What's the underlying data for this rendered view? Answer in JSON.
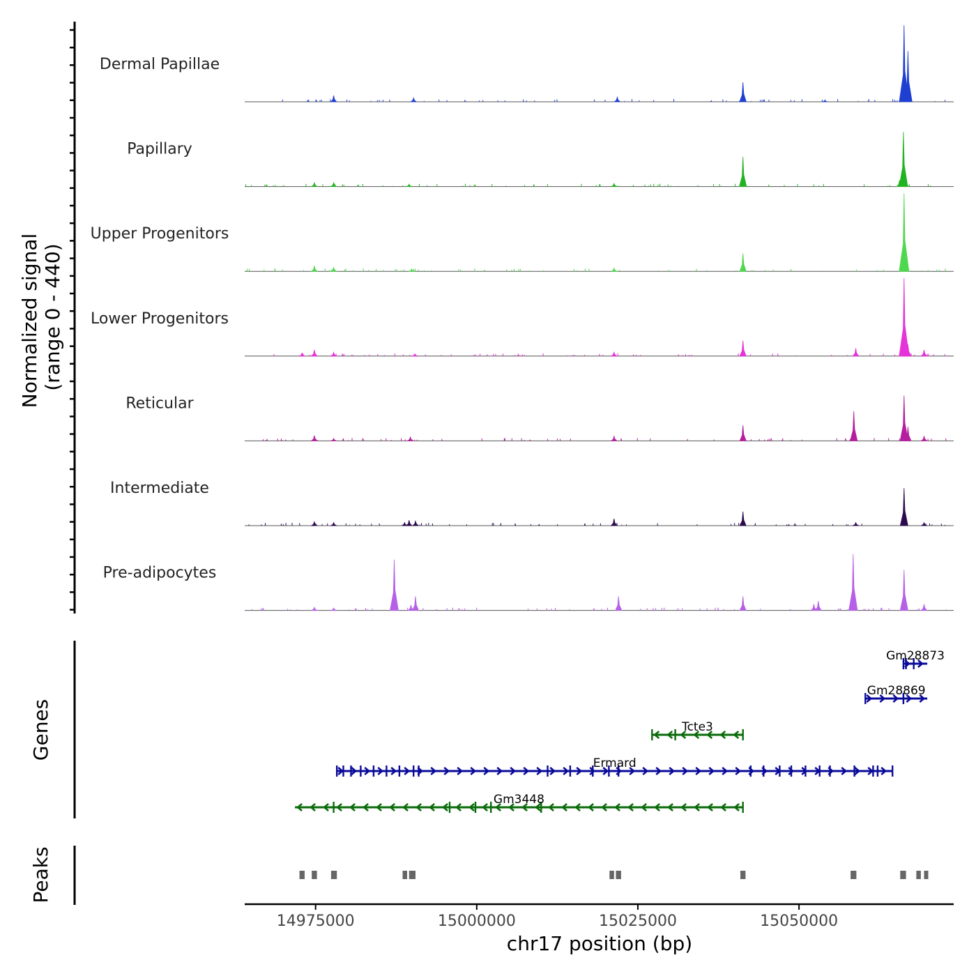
{
  "chart_data": {
    "type": "area",
    "chromosome": "chr17",
    "xlabel": "chr17 position (bp)",
    "xlim": [
      14964000,
      15074000
    ],
    "x_ticks": [
      14975000,
      15000000,
      15025000,
      15050000
    ],
    "x_tick_labels": [
      "14975000",
      "15000000",
      "15025000",
      "15050000"
    ],
    "coverage_panel": {
      "ylabel_line1": "Normalized signal",
      "ylabel_line2": "(range 0 - 440)",
      "ylim": [
        0,
        440
      ],
      "tracks": [
        {
          "name": "Dermal Papillae",
          "color": "#1f3fd1",
          "peaks": [
            [
              14977800,
              0.08
            ],
            [
              14990200,
              0.05
            ],
            [
              15021800,
              0.06
            ],
            [
              15041300,
              0.25
            ],
            [
              15066300,
              0.98
            ],
            [
              15066900,
              0.65
            ],
            [
              15054000,
              0.02
            ]
          ]
        },
        {
          "name": "Papillary",
          "color": "#22b322",
          "peaks": [
            [
              14974800,
              0.05
            ],
            [
              14977800,
              0.05
            ],
            [
              14989500,
              0.03
            ],
            [
              15021300,
              0.04
            ],
            [
              15041300,
              0.38
            ],
            [
              15066200,
              0.7
            ],
            [
              15065600,
              0.08
            ]
          ]
        },
        {
          "name": "Upper Progenitors",
          "color": "#4fd84f",
          "peaks": [
            [
              14974800,
              0.07
            ],
            [
              14977800,
              0.05
            ],
            [
              14989900,
              0.03
            ],
            [
              15021300,
              0.04
            ],
            [
              15041300,
              0.23
            ],
            [
              15066300,
              1.0
            ],
            [
              15066600,
              0.12
            ]
          ]
        },
        {
          "name": "Lower Progenitors",
          "color": "#e532d9",
          "peaks": [
            [
              14972900,
              0.04
            ],
            [
              14974800,
              0.08
            ],
            [
              14977800,
              0.05
            ],
            [
              14990400,
              0.03
            ],
            [
              15021300,
              0.05
            ],
            [
              15041300,
              0.2
            ],
            [
              15058800,
              0.1
            ],
            [
              15066300,
              1.0
            ],
            [
              15066900,
              0.15
            ],
            [
              15069400,
              0.08
            ]
          ]
        },
        {
          "name": "Reticular",
          "color": "#b51e9f",
          "peaks": [
            [
              14974800,
              0.07
            ],
            [
              14977800,
              0.03
            ],
            [
              14989700,
              0.05
            ],
            [
              15021300,
              0.06
            ],
            [
              15041300,
              0.2
            ],
            [
              15058500,
              0.38
            ],
            [
              15066300,
              0.58
            ],
            [
              15066900,
              0.18
            ],
            [
              15069400,
              0.06
            ]
          ]
        },
        {
          "name": "Intermediate",
          "color": "#2e0a4e",
          "peaks": [
            [
              14974800,
              0.05
            ],
            [
              14977800,
              0.04
            ],
            [
              14988800,
              0.04
            ],
            [
              14989500,
              0.07
            ],
            [
              14990500,
              0.06
            ],
            [
              15021300,
              0.09
            ],
            [
              15041300,
              0.18
            ],
            [
              15058800,
              0.04
            ],
            [
              15066300,
              0.48
            ],
            [
              15069400,
              0.04
            ]
          ]
        },
        {
          "name": "Pre-adipocytes",
          "color": "#b660e6",
          "peaks": [
            [
              14974800,
              0.04
            ],
            [
              14977800,
              0.03
            ],
            [
              14987200,
              0.65
            ],
            [
              14990500,
              0.18
            ],
            [
              14989800,
              0.07
            ],
            [
              15022000,
              0.18
            ],
            [
              15041300,
              0.18
            ],
            [
              15052300,
              0.08
            ],
            [
              15053000,
              0.12
            ],
            [
              15058400,
              0.72
            ],
            [
              15066300,
              0.52
            ],
            [
              15069400,
              0.08
            ]
          ]
        }
      ]
    },
    "genes_panel": {
      "ylabel": "Genes",
      "genes": [
        {
          "name": "Gm28873",
          "strand": "+",
          "start": 15066200,
          "end": 15069900,
          "color": "#0a0a99",
          "exons": [
            15066200,
            15066600,
            15067800
          ]
        },
        {
          "name": "Gm28869",
          "strand": "+",
          "start": 15060300,
          "end": 15069900,
          "color": "#0a0a99",
          "exons": [
            15060300,
            15066200
          ]
        },
        {
          "name": "Tcte3",
          "strand": "-",
          "start": 15027200,
          "end": 15041300,
          "color": "#0a6b0a",
          "exons": [
            15027200,
            15030800,
            15041300
          ]
        },
        {
          "name": "Ermard",
          "strand": "+",
          "start": 14978300,
          "end": 15064500,
          "color": "#0a0a99",
          "exons": [
            14978300,
            14979300,
            14980500,
            14982000,
            14984000,
            14986000,
            14988000,
            14990200,
            14991000,
            15011000,
            15014500,
            15018000,
            15020500,
            15022000,
            15042500,
            15044500,
            15047000,
            15048800,
            15051000,
            15053200,
            15054800,
            15058600,
            15061500,
            15062200,
            15064500
          ]
        },
        {
          "name": "Gm3448",
          "strand": "-",
          "start": 14971800,
          "end": 15041300,
          "color": "#0a6b0a",
          "exons": [
            14977800,
            14995800,
            14999800,
            15002200,
            15010000,
            15041300
          ]
        }
      ]
    },
    "peaks_panel": {
      "ylabel": "Peaks",
      "color": "#666666",
      "regions": [
        [
          14972500,
          14973300
        ],
        [
          14974400,
          14975200
        ],
        [
          14977400,
          14978300
        ],
        [
          14988500,
          14989200
        ],
        [
          14989500,
          14990500
        ],
        [
          15020600,
          15021300
        ],
        [
          15021600,
          15022400
        ],
        [
          15040900,
          15041700
        ],
        [
          15058000,
          15058900
        ],
        [
          15065700,
          15066600
        ],
        [
          15068200,
          15068900
        ],
        [
          15069400,
          15069700
        ]
      ]
    }
  }
}
